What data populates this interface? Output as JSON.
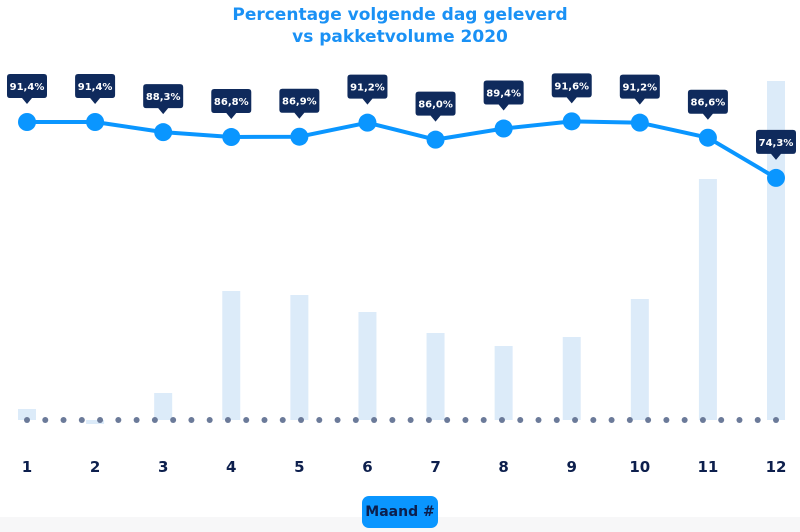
{
  "chart_data": {
    "type": "line+bar",
    "title_line1": "Percentage volgende dag geleverd",
    "title_line2": "vs pakketvolume 2020",
    "categories": [
      "1",
      "2",
      "3",
      "4",
      "5",
      "6",
      "7",
      "8",
      "9",
      "10",
      "11",
      "12"
    ],
    "series": [
      {
        "type": "line",
        "values": [
          91.4,
          91.4,
          88.3,
          86.8,
          86.9,
          91.2,
          86.0,
          89.4,
          91.6,
          91.2,
          86.6,
          74.3
        ],
        "labels": [
          "91,4%",
          "91,4%",
          "88,3%",
          "86,8%",
          "86,9%",
          "91,2%",
          "86,0%",
          "89,4%",
          "91,6%",
          "91,2%",
          "86,6%",
          "74,3%"
        ]
      },
      {
        "type": "bar",
        "values": [
          11,
          -4,
          27,
          129,
          125,
          108,
          87,
          74,
          83,
          121,
          241,
          339
        ]
      }
    ],
    "xlabel": "Maand #",
    "colors": {
      "line": "#0a96ff",
      "bar": "#dcebf9",
      "label_bg": "#0f2a5c",
      "baseline_dots": "#6b7a99",
      "axis_text": "#0d1f4d",
      "title": "#1a91f5"
    }
  }
}
